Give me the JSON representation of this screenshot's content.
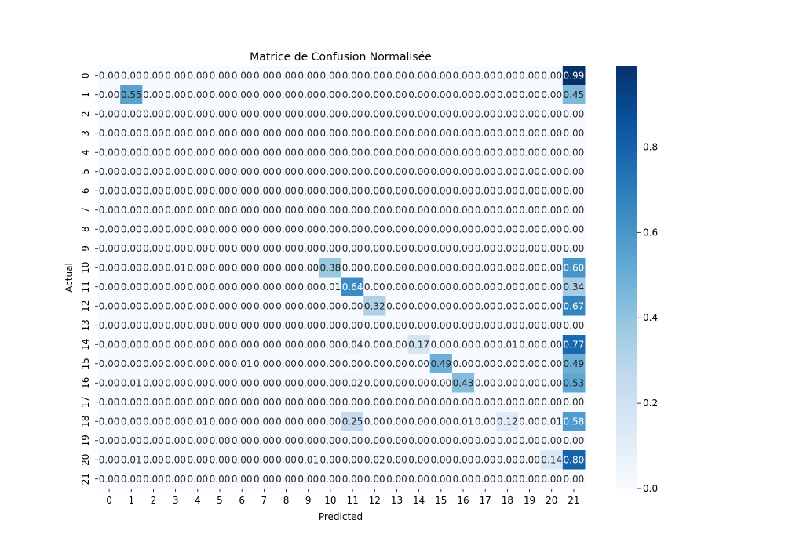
{
  "chart_data": {
    "type": "heatmap",
    "title": "Matrice de Confusion Normalisée",
    "xlabel": "Predicted",
    "ylabel": "Actual",
    "x_categories": [
      "0",
      "1",
      "2",
      "3",
      "4",
      "5",
      "6",
      "7",
      "8",
      "9",
      "10",
      "11",
      "12",
      "13",
      "14",
      "15",
      "16",
      "17",
      "18",
      "19",
      "20",
      "21"
    ],
    "y_categories": [
      "0",
      "1",
      "2",
      "3",
      "4",
      "5",
      "6",
      "7",
      "8",
      "9",
      "10",
      "11",
      "12",
      "13",
      "14",
      "15",
      "16",
      "17",
      "18",
      "19",
      "20",
      "21"
    ],
    "value_format": "2 decimals",
    "colormap": "Blues",
    "color_range": [
      0,
      0.99
    ],
    "colorbar_ticks": [
      "0.0",
      "0.2",
      "0.4",
      "0.6",
      "0.8"
    ],
    "values": [
      [
        0.0,
        0.0,
        0.0,
        0.0,
        0.0,
        0.0,
        0.0,
        0.0,
        0.0,
        0.0,
        0.0,
        0.0,
        0.0,
        0.0,
        0.0,
        0.0,
        0.0,
        0.0,
        0.0,
        0.0,
        0.0,
        0.99
      ],
      [
        0.0,
        0.55,
        0.0,
        0.0,
        0.0,
        0.0,
        0.0,
        0.0,
        0.0,
        0.0,
        0.0,
        0.0,
        0.0,
        0.0,
        0.0,
        0.0,
        0.0,
        0.0,
        0.0,
        0.0,
        0.0,
        0.45
      ],
      [
        0.0,
        0.0,
        0.0,
        0.0,
        0.0,
        0.0,
        0.0,
        0.0,
        0.0,
        0.0,
        0.0,
        0.0,
        0.0,
        0.0,
        0.0,
        0.0,
        0.0,
        0.0,
        0.0,
        0.0,
        0.0,
        0.0
      ],
      [
        0.0,
        0.0,
        0.0,
        0.0,
        0.0,
        0.0,
        0.0,
        0.0,
        0.0,
        0.0,
        0.0,
        0.0,
        0.0,
        0.0,
        0.0,
        0.0,
        0.0,
        0.0,
        0.0,
        0.0,
        0.0,
        0.0
      ],
      [
        0.0,
        0.0,
        0.0,
        0.0,
        0.0,
        0.0,
        0.0,
        0.0,
        0.0,
        0.0,
        0.0,
        0.0,
        0.0,
        0.0,
        0.0,
        0.0,
        0.0,
        0.0,
        0.0,
        0.0,
        0.0,
        0.0
      ],
      [
        0.0,
        0.0,
        0.0,
        0.0,
        0.0,
        0.0,
        0.0,
        0.0,
        0.0,
        0.0,
        0.0,
        0.0,
        0.0,
        0.0,
        0.0,
        0.0,
        0.0,
        0.0,
        0.0,
        0.0,
        0.0,
        0.0
      ],
      [
        0.0,
        0.0,
        0.0,
        0.0,
        0.0,
        0.0,
        0.0,
        0.0,
        0.0,
        0.0,
        0.0,
        0.0,
        0.0,
        0.0,
        0.0,
        0.0,
        0.0,
        0.0,
        0.0,
        0.0,
        0.0,
        0.0
      ],
      [
        0.0,
        0.0,
        0.0,
        0.0,
        0.0,
        0.0,
        0.0,
        0.0,
        0.0,
        0.0,
        0.0,
        0.0,
        0.0,
        0.0,
        0.0,
        0.0,
        0.0,
        0.0,
        0.0,
        0.0,
        0.0,
        0.0
      ],
      [
        0.0,
        0.0,
        0.0,
        0.0,
        0.0,
        0.0,
        0.0,
        0.0,
        0.0,
        0.0,
        0.0,
        0.0,
        0.0,
        0.0,
        0.0,
        0.0,
        0.0,
        0.0,
        0.0,
        0.0,
        0.0,
        0.0
      ],
      [
        0.0,
        0.0,
        0.0,
        0.0,
        0.0,
        0.0,
        0.0,
        0.0,
        0.0,
        0.0,
        0.0,
        0.0,
        0.0,
        0.0,
        0.0,
        0.0,
        0.0,
        0.0,
        0.0,
        0.0,
        0.0,
        0.0
      ],
      [
        0.0,
        0.0,
        0.0,
        0.01,
        0.0,
        0.0,
        0.0,
        0.0,
        0.0,
        0.0,
        0.38,
        0.0,
        0.0,
        0.0,
        0.0,
        0.0,
        0.0,
        0.0,
        0.0,
        0.0,
        0.0,
        0.6
      ],
      [
        0.0,
        0.0,
        0.0,
        0.0,
        0.0,
        0.0,
        0.0,
        0.0,
        0.0,
        0.0,
        0.01,
        0.64,
        0.0,
        0.0,
        0.0,
        0.0,
        0.0,
        0.0,
        0.0,
        0.0,
        0.0,
        0.34
      ],
      [
        0.0,
        0.0,
        0.0,
        0.0,
        0.0,
        0.0,
        0.0,
        0.0,
        0.0,
        0.0,
        0.0,
        0.0,
        0.32,
        0.0,
        0.0,
        0.0,
        0.0,
        0.0,
        0.0,
        0.0,
        0.0,
        0.67
      ],
      [
        0.0,
        0.0,
        0.0,
        0.0,
        0.0,
        0.0,
        0.0,
        0.0,
        0.0,
        0.0,
        0.0,
        0.0,
        0.0,
        0.0,
        0.0,
        0.0,
        0.0,
        0.0,
        0.0,
        0.0,
        0.0,
        0.0
      ],
      [
        0.0,
        0.0,
        0.0,
        0.0,
        0.0,
        0.0,
        0.0,
        0.0,
        0.0,
        0.0,
        0.0,
        0.04,
        0.0,
        0.0,
        0.17,
        0.0,
        0.0,
        0.0,
        0.01,
        0.0,
        0.0,
        0.77
      ],
      [
        0.0,
        0.0,
        0.0,
        0.0,
        0.0,
        0.0,
        0.01,
        0.0,
        0.0,
        0.0,
        0.0,
        0.0,
        0.0,
        0.0,
        0.0,
        0.49,
        0.0,
        0.0,
        0.0,
        0.0,
        0.0,
        0.49
      ],
      [
        0.0,
        0.01,
        0.0,
        0.0,
        0.0,
        0.0,
        0.0,
        0.0,
        0.0,
        0.0,
        0.0,
        0.02,
        0.0,
        0.0,
        0.0,
        0.0,
        0.43,
        0.0,
        0.0,
        0.0,
        0.0,
        0.53
      ],
      [
        0.0,
        0.0,
        0.0,
        0.0,
        0.0,
        0.0,
        0.0,
        0.0,
        0.0,
        0.0,
        0.0,
        0.0,
        0.0,
        0.0,
        0.0,
        0.0,
        0.0,
        0.0,
        0.0,
        0.0,
        0.0,
        0.0
      ],
      [
        0.0,
        0.0,
        0.0,
        0.0,
        0.01,
        0.0,
        0.0,
        0.0,
        0.0,
        0.0,
        0.0,
        0.25,
        0.0,
        0.0,
        0.0,
        0.0,
        0.01,
        0.0,
        0.12,
        0.0,
        0.01,
        0.58
      ],
      [
        0.0,
        0.0,
        0.0,
        0.0,
        0.0,
        0.0,
        0.0,
        0.0,
        0.0,
        0.0,
        0.0,
        0.0,
        0.0,
        0.0,
        0.0,
        0.0,
        0.0,
        0.0,
        0.0,
        0.0,
        0.0,
        0.0
      ],
      [
        0.0,
        0.01,
        0.0,
        0.0,
        0.0,
        0.0,
        0.0,
        0.0,
        0.0,
        0.01,
        0.0,
        0.0,
        0.02,
        0.0,
        0.0,
        0.0,
        0.0,
        0.0,
        0.0,
        0.0,
        0.14,
        0.8
      ],
      [
        0.0,
        0.0,
        0.0,
        0.0,
        0.0,
        0.0,
        0.0,
        0.0,
        0.0,
        0.0,
        0.0,
        0.0,
        0.0,
        0.0,
        0.0,
        0.0,
        0.0,
        0.0,
        0.0,
        0.0,
        0.0,
        0.0
      ]
    ],
    "grid": false,
    "legend": "colorbar-right"
  }
}
